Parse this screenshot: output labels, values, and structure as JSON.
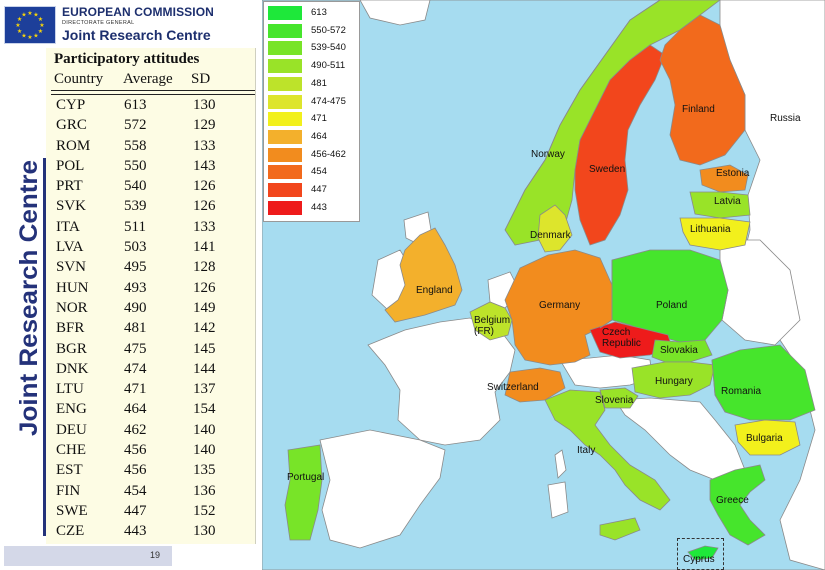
{
  "header": {
    "org": "EUROPEAN COMMISSION",
    "directorate": "DIRECTORATE GENERAL",
    "centre": "Joint Research Centre",
    "vertical": "Joint Research Centre"
  },
  "table": {
    "title": "Participatory attitudes",
    "headers": [
      "Country",
      "Average",
      "SD"
    ],
    "rows": [
      [
        "CYP",
        "613",
        "130"
      ],
      [
        "GRC",
        "572",
        "129"
      ],
      [
        "ROM",
        "558",
        "133"
      ],
      [
        "POL",
        "550",
        "143"
      ],
      [
        "PRT",
        "540",
        "126"
      ],
      [
        "SVK",
        "539",
        "126"
      ],
      [
        "ITA",
        "511",
        "133"
      ],
      [
        "LVA",
        "503",
        "141"
      ],
      [
        "SVN",
        "495",
        "128"
      ],
      [
        "HUN",
        "493",
        "126"
      ],
      [
        "NOR",
        "490",
        "149"
      ],
      [
        "BFR",
        "481",
        "142"
      ],
      [
        "BGR",
        "475",
        "145"
      ],
      [
        "DNK",
        "474",
        "144"
      ],
      [
        "LTU",
        "471",
        "137"
      ],
      [
        "ENG",
        "464",
        "154"
      ],
      [
        "DEU",
        "462",
        "140"
      ],
      [
        "CHE",
        "456",
        "140"
      ],
      [
        "EST",
        "456",
        "135"
      ],
      [
        "FIN",
        "454",
        "136"
      ],
      [
        "SWE",
        "447",
        "152"
      ],
      [
        "CZE",
        "443",
        "130"
      ]
    ]
  },
  "page_number": "19",
  "legend": [
    {
      "label": "613",
      "color": "#1ee83a"
    },
    {
      "label": "550-572",
      "color": "#46e52c"
    },
    {
      "label": "539-540",
      "color": "#78e428"
    },
    {
      "label": "490-511",
      "color": "#99e328"
    },
    {
      "label": "481",
      "color": "#bde32a"
    },
    {
      "label": "474-475",
      "color": "#dde52c"
    },
    {
      "label": "471",
      "color": "#f2f01c"
    },
    {
      "label": "464",
      "color": "#f3b02c"
    },
    {
      "label": "456-462",
      "color": "#f28c1e"
    },
    {
      "label": "454",
      "color": "#f26a1c"
    },
    {
      "label": "447",
      "color": "#f2461c"
    },
    {
      "label": "443",
      "color": "#ee1b1b"
    }
  ],
  "colors": {
    "sea": "#a6dcf0",
    "neutral": "#ffffff",
    "border": "#8a8a8a",
    "table_bg": "#fdfce4",
    "brand": "#1d2f6e"
  },
  "countries": {
    "finland": "Finland",
    "russia": "Russia",
    "norway": "Norway",
    "sweden": "Sweden",
    "estonia": "Estonia",
    "latvia": "Latvia",
    "lithuania": "Lithuania",
    "denmark": "Denmark",
    "england": "England",
    "germany": "Germany",
    "poland": "Poland",
    "belgium": "Belgium\n(FR)",
    "czech": "Czech\nRepublic",
    "slovakia": "Slovakia",
    "hungary": "Hungary",
    "switzerland": "Switzerland",
    "slovenia": "Slovenia",
    "romania": "Romania",
    "bulgaria": "Bulgaria",
    "italy": "Italy",
    "portugal": "Portugal",
    "greece": "Greece",
    "cyprus": "Cyprus"
  }
}
